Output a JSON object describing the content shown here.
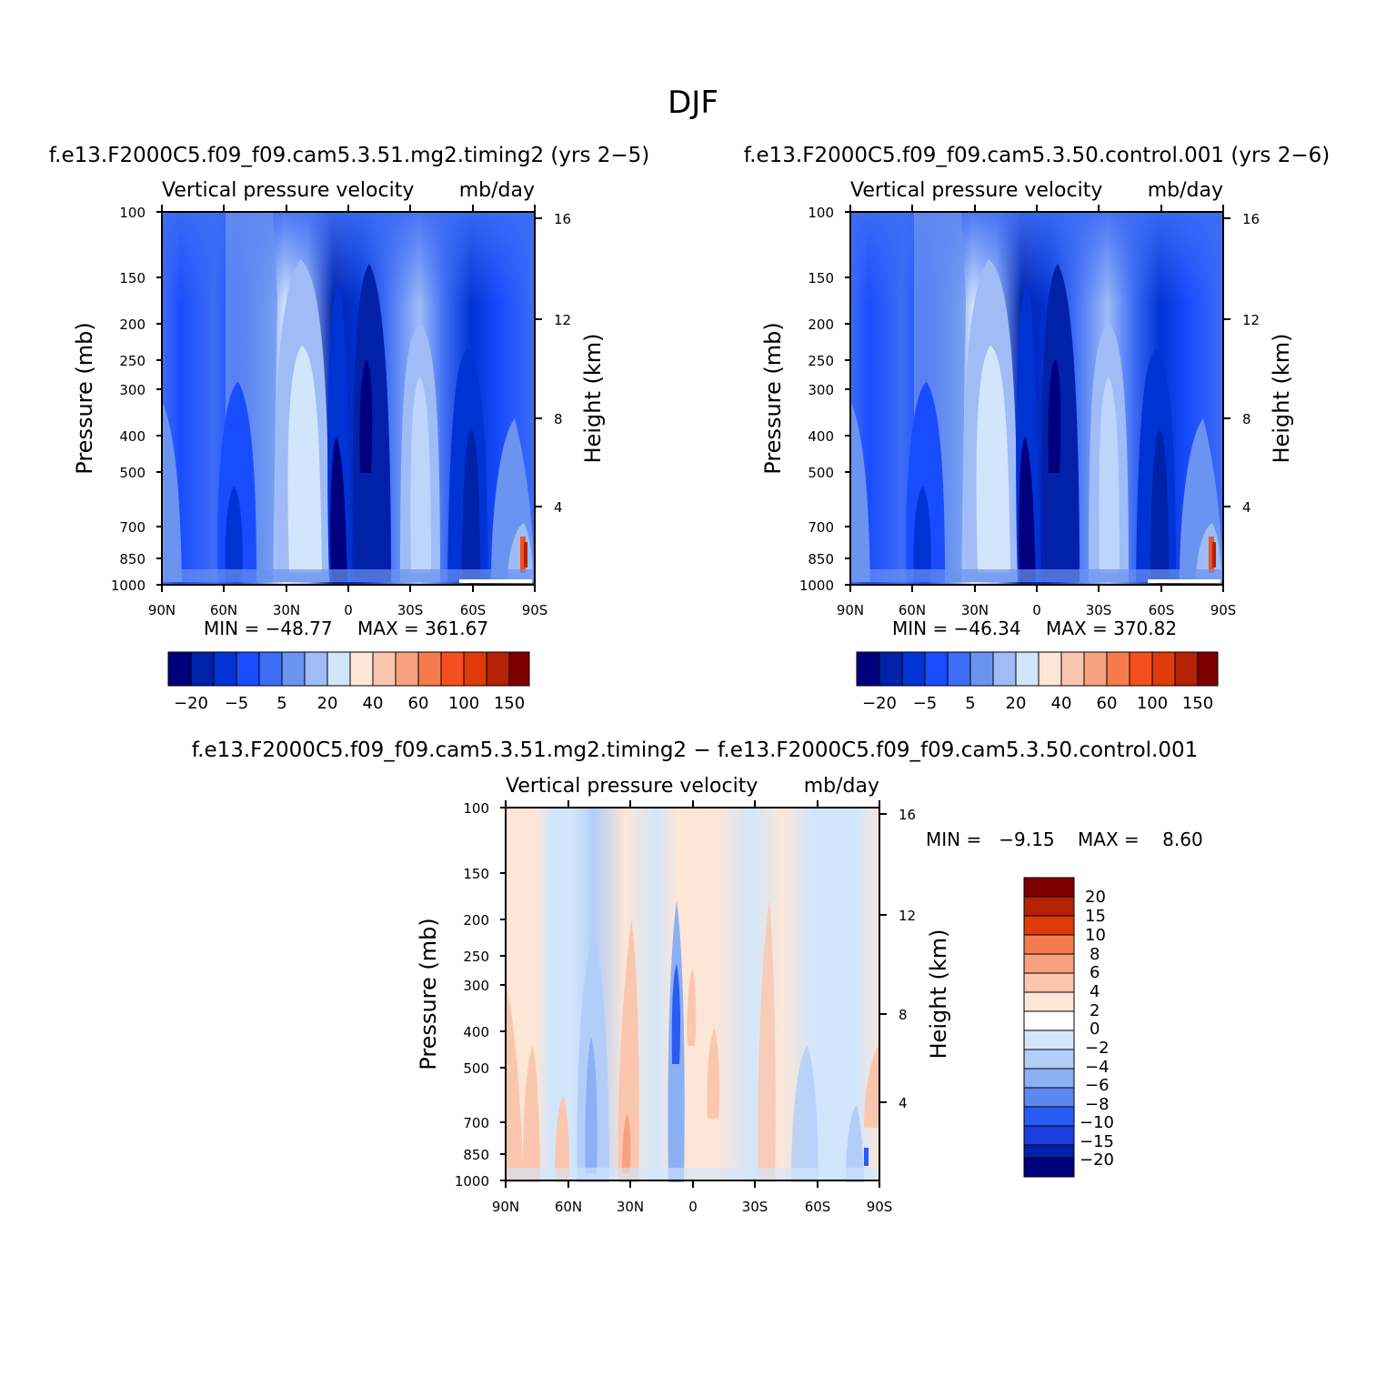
{
  "figure": {
    "title": "DJF"
  },
  "colors": {
    "scale13": [
      "#00007f",
      "#0021a8",
      "#0033d4",
      "#1a4cff",
      "#3d6cf5",
      "#6b93f0",
      "#9fbcf7",
      "#d2e6fb",
      "#fde6d6",
      "#fbc6ae",
      "#f7a17e",
      "#f57b4c",
      "#f44f1f",
      "#e03a08",
      "#b52204",
      "#7f0000"
    ],
    "top_legend": [
      "#00007f",
      "#0021a8",
      "#0033d4",
      "#1a4cff",
      "#3d6cf5",
      "#6b93f0",
      "#9fbcf7",
      "#d2e6fb",
      "#fde6d6",
      "#fbc6ae",
      "#f7a17e",
      "#f57b4c",
      "#f44f1f",
      "#e03a08",
      "#b52204",
      "#7f0000"
    ],
    "diff_legend": [
      "#7f0000",
      "#b52204",
      "#e03a08",
      "#f57b4c",
      "#f7a17e",
      "#fbc6ae",
      "#fde6d6",
      "#d2e6fb",
      "#b3cdf9",
      "#8cb0f4",
      "#5b87f0",
      "#2a5bf5",
      "#1a3ee0",
      "#0021a8",
      "#00007f"
    ]
  },
  "chart_data": [
    {
      "type": "heatmap",
      "case": "f.e13.F2000C5.f09_f09.cam5.3.51.mg2.timing2 (yrs 2−5)",
      "title": "Vertical pressure velocity",
      "units": "mb/day",
      "xlabel": "",
      "ylabel": "Pressure (mb)",
      "y2label": "Height (km)",
      "x_ticks": [
        "90N",
        "60N",
        "30N",
        "0",
        "30S",
        "60S",
        "90S"
      ],
      "y_ticks": [
        100,
        150,
        200,
        250,
        300,
        400,
        500,
        700,
        850,
        1000
      ],
      "y2_ticks": [
        16,
        12,
        8,
        4
      ],
      "ylim": [
        1000,
        100
      ],
      "yscale": "log",
      "min_label": "MIN = −48.77",
      "max_label": "MAX = 361.67",
      "colorbar": {
        "orientation": "horizontal",
        "labels": [
          "−20",
          "−5",
          "5",
          "20",
          "40",
          "60",
          "100",
          "150"
        ]
      }
    },
    {
      "type": "heatmap",
      "case": "f.e13.F2000C5.f09_f09.cam5.3.50.control.001 (yrs 2−6)",
      "title": "Vertical pressure velocity",
      "units": "mb/day",
      "xlabel": "",
      "ylabel": "Pressure (mb)",
      "y2label": "Height (km)",
      "x_ticks": [
        "90N",
        "60N",
        "30N",
        "0",
        "30S",
        "60S",
        "90S"
      ],
      "y_ticks": [
        100,
        150,
        200,
        250,
        300,
        400,
        500,
        700,
        850,
        1000
      ],
      "y2_ticks": [
        16,
        12,
        8,
        4
      ],
      "ylim": [
        1000,
        100
      ],
      "yscale": "log",
      "min_label": "MIN = −46.34",
      "max_label": "MAX = 370.82",
      "colorbar": {
        "orientation": "horizontal",
        "labels": [
          "−20",
          "−5",
          "5",
          "20",
          "40",
          "60",
          "100",
          "150"
        ]
      }
    },
    {
      "type": "heatmap",
      "case": "f.e13.F2000C5.f09_f09.cam5.3.51.mg2.timing2 − f.e13.F2000C5.f09_f09.cam5.3.50.control.001",
      "title": "Vertical pressure velocity",
      "units": "mb/day",
      "xlabel": "",
      "ylabel": "Pressure (mb)",
      "y2label": "Height (km)",
      "x_ticks": [
        "90N",
        "60N",
        "30N",
        "0",
        "30S",
        "60S",
        "90S"
      ],
      "y_ticks": [
        100,
        150,
        200,
        250,
        300,
        400,
        500,
        700,
        850,
        1000
      ],
      "y2_ticks": [
        16,
        12,
        8,
        4
      ],
      "ylim": [
        1000,
        100
      ],
      "yscale": "log",
      "min_label": "MIN =   −9.15",
      "max_label": "MAX =    8.60",
      "colorbar": {
        "orientation": "vertical",
        "labels": [
          "20",
          "15",
          "10",
          "8",
          "6",
          "4",
          "2",
          "0",
          "−2",
          "−4",
          "−6",
          "−8",
          "−10",
          "−15",
          "−20"
        ]
      }
    }
  ]
}
